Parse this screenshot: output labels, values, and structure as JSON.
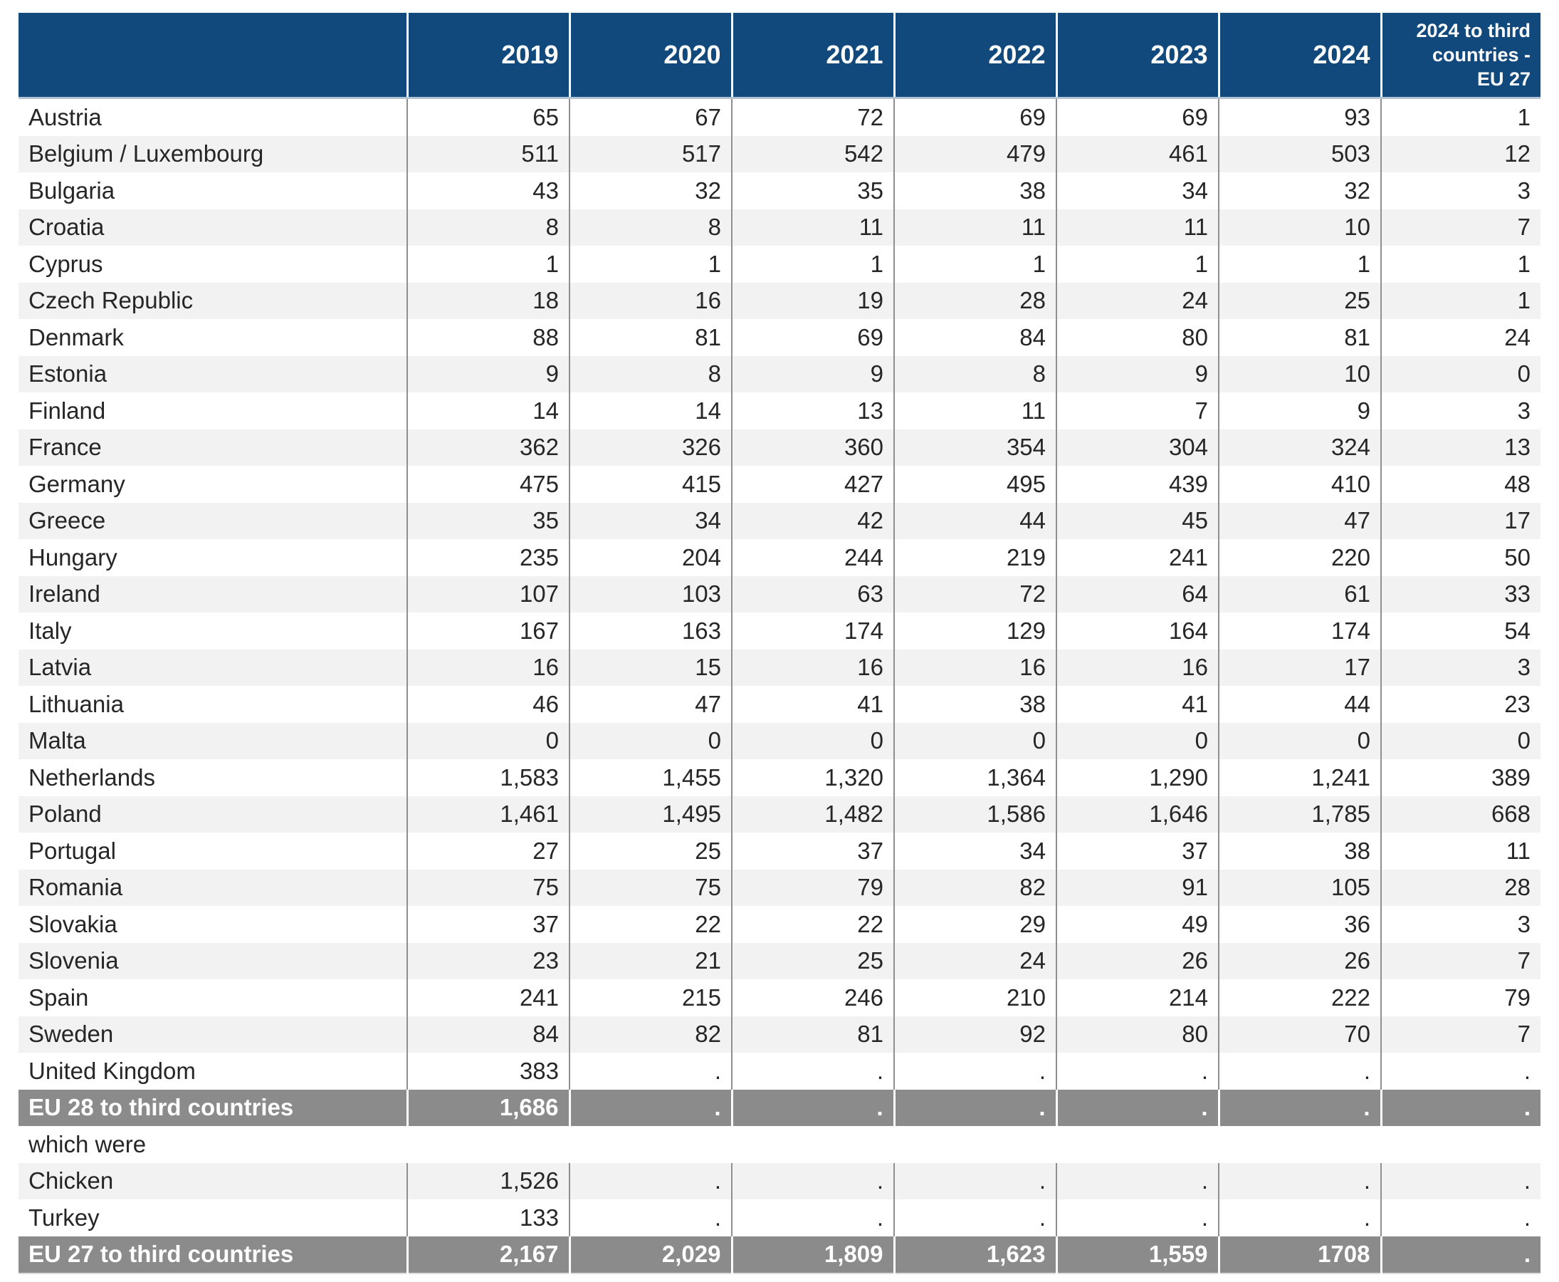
{
  "colors": {
    "header_bg": "#11497d",
    "header_text": "#ffffff",
    "summary_bg": "#8b8b8b",
    "summary_text": "#ffffff",
    "stripe_bg": "#f2f2f2",
    "body_text": "#262626",
    "grid_line": "#8f8f8f",
    "header_underline": "#b2c3d6"
  },
  "chart_data": {
    "type": "table",
    "columns": [
      "",
      "2019",
      "2020",
      "2021",
      "2022",
      "2023",
      "2024",
      "2024 to third\ncountries -\nEU 27"
    ],
    "rows": [
      {
        "label": "Austria",
        "style": "data",
        "values": [
          "65",
          "67",
          "72",
          "69",
          "69",
          "93",
          "1"
        ]
      },
      {
        "label": "Belgium / Luxembourg",
        "style": "data",
        "values": [
          "511",
          "517",
          "542",
          "479",
          "461",
          "503",
          "12"
        ]
      },
      {
        "label": "Bulgaria",
        "style": "data",
        "values": [
          "43",
          "32",
          "35",
          "38",
          "34",
          "32",
          "3"
        ]
      },
      {
        "label": "Croatia",
        "style": "data",
        "values": [
          "8",
          "8",
          "11",
          "11",
          "11",
          "10",
          "7"
        ]
      },
      {
        "label": "Cyprus",
        "style": "data",
        "values": [
          "1",
          "1",
          "1",
          "1",
          "1",
          "1",
          "1"
        ]
      },
      {
        "label": "Czech Republic",
        "style": "data",
        "values": [
          "18",
          "16",
          "19",
          "28",
          "24",
          "25",
          "1"
        ]
      },
      {
        "label": "Denmark",
        "style": "data",
        "values": [
          "88",
          "81",
          "69",
          "84",
          "80",
          "81",
          "24"
        ]
      },
      {
        "label": "Estonia",
        "style": "data",
        "values": [
          "9",
          "8",
          "9",
          "8",
          "9",
          "10",
          "0"
        ]
      },
      {
        "label": "Finland",
        "style": "data",
        "values": [
          "14",
          "14",
          "13",
          "11",
          "7",
          "9",
          "3"
        ]
      },
      {
        "label": "France",
        "style": "data",
        "values": [
          "362",
          "326",
          "360",
          "354",
          "304",
          "324",
          "13"
        ]
      },
      {
        "label": "Germany",
        "style": "data",
        "values": [
          "475",
          "415",
          "427",
          "495",
          "439",
          "410",
          "48"
        ]
      },
      {
        "label": "Greece",
        "style": "data",
        "values": [
          "35",
          "34",
          "42",
          "44",
          "45",
          "47",
          "17"
        ]
      },
      {
        "label": "Hungary",
        "style": "data",
        "values": [
          "235",
          "204",
          "244",
          "219",
          "241",
          "220",
          "50"
        ]
      },
      {
        "label": "Ireland",
        "style": "data",
        "values": [
          "107",
          "103",
          "63",
          "72",
          "64",
          "61",
          "33"
        ]
      },
      {
        "label": "Italy",
        "style": "data",
        "values": [
          "167",
          "163",
          "174",
          "129",
          "164",
          "174",
          "54"
        ]
      },
      {
        "label": "Latvia",
        "style": "data",
        "values": [
          "16",
          "15",
          "16",
          "16",
          "16",
          "17",
          "3"
        ]
      },
      {
        "label": "Lithuania",
        "style": "data",
        "values": [
          "46",
          "47",
          "41",
          "38",
          "41",
          "44",
          "23"
        ]
      },
      {
        "label": "Malta",
        "style": "data",
        "values": [
          "0",
          "0",
          "0",
          "0",
          "0",
          "0",
          "0"
        ]
      },
      {
        "label": "Netherlands",
        "style": "data",
        "values": [
          "1,583",
          "1,455",
          "1,320",
          "1,364",
          "1,290",
          "1,241",
          "389"
        ]
      },
      {
        "label": "Poland",
        "style": "data",
        "values": [
          "1,461",
          "1,495",
          "1,482",
          "1,586",
          "1,646",
          "1,785",
          "668"
        ]
      },
      {
        "label": "Portugal",
        "style": "data",
        "values": [
          "27",
          "25",
          "37",
          "34",
          "37",
          "38",
          "11"
        ]
      },
      {
        "label": "Romania",
        "style": "data",
        "values": [
          "75",
          "75",
          "79",
          "82",
          "91",
          "105",
          "28"
        ]
      },
      {
        "label": "Slovakia",
        "style": "data",
        "values": [
          "37",
          "22",
          "22",
          "29",
          "49",
          "36",
          "3"
        ]
      },
      {
        "label": "Slovenia",
        "style": "data",
        "values": [
          "23",
          "21",
          "25",
          "24",
          "26",
          "26",
          "7"
        ]
      },
      {
        "label": "Spain",
        "style": "data",
        "values": [
          "241",
          "215",
          "246",
          "210",
          "214",
          "222",
          "79"
        ]
      },
      {
        "label": "Sweden",
        "style": "data",
        "values": [
          "84",
          "82",
          "81",
          "92",
          "80",
          "70",
          "7"
        ]
      },
      {
        "label": "United Kingdom",
        "style": "data",
        "values": [
          "383",
          ".",
          ".",
          ".",
          ".",
          ".",
          "."
        ]
      },
      {
        "label": "EU 28 to third countries",
        "style": "summary",
        "values": [
          "1,686",
          ".",
          ".",
          ".",
          ".",
          ".",
          "."
        ]
      },
      {
        "label": "which were",
        "style": "section",
        "values": null
      },
      {
        "label": "Chicken",
        "style": "data",
        "values": [
          "1,526",
          ".",
          ".",
          ".",
          ".",
          ".",
          "."
        ]
      },
      {
        "label": "Turkey",
        "style": "data",
        "values": [
          "133",
          ".",
          ".",
          ".",
          ".",
          ".",
          "."
        ]
      },
      {
        "label": "EU 27 to third countries",
        "style": "summary",
        "values": [
          "2,167",
          "2,029",
          "1,809",
          "1,623",
          "1,559",
          "1708",
          "."
        ]
      }
    ]
  }
}
